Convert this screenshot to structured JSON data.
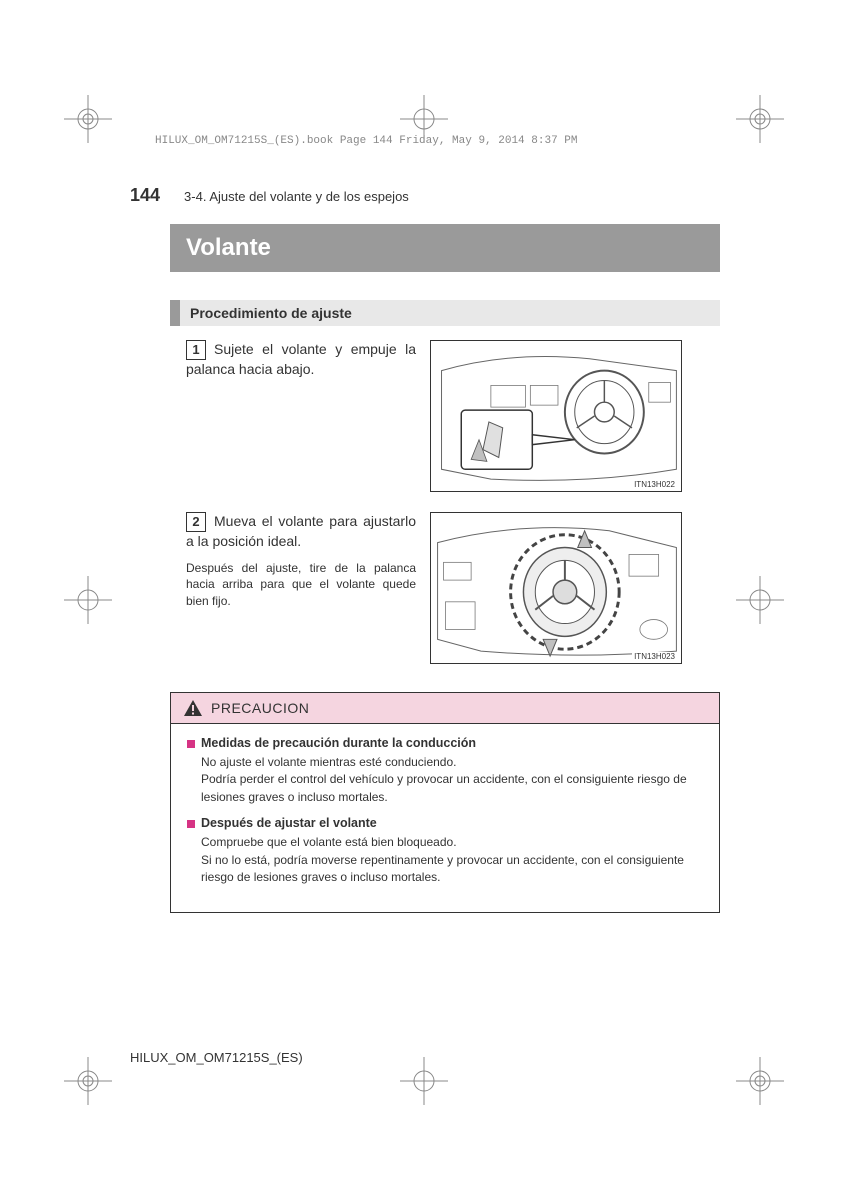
{
  "header_meta": "HILUX_OM_OM71215S_(ES).book  Page 144  Friday, May 9, 2014  8:37 PM",
  "page_number": "144",
  "section_path": "3-4. Ajuste del volante y de los espejos",
  "title": "Volante",
  "subsection_title": "Procedimiento de ajuste",
  "steps": [
    {
      "num": "1",
      "text": "Sujete el volante y empuje la palanca hacia abajo.",
      "subtext": "",
      "img_code": "ITN13H022"
    },
    {
      "num": "2",
      "text": "Mueva el volante para ajustarlo a la posición ideal.",
      "subtext": "Después del ajuste, tire de la palanca hacia arriba para que el volante quede bien fijo.",
      "img_code": "ITN13H023"
    }
  ],
  "caution": {
    "title": "PRECAUCION",
    "items": [
      {
        "heading": "Medidas de precaución durante la conducción",
        "body": "No ajuste el volante mientras esté conduciendo.\nPodría perder el control del vehículo y provocar un accidente, con el consiguiente riesgo de lesiones graves o incluso mortales."
      },
      {
        "heading": "Después de ajustar el volante",
        "body": "Compruebe que el volante está bien bloqueado.\nSi no lo está, podría moverse repentinamente y provocar un accidente, con el consiguiente riesgo de lesiones graves o incluso mortales."
      }
    ]
  },
  "footer_code": "HILUX_OM_OM71215S_(ES)",
  "colors": {
    "title_bg": "#9a9a9a",
    "caution_bg": "#f5d5e0",
    "bullet": "#d63384"
  }
}
